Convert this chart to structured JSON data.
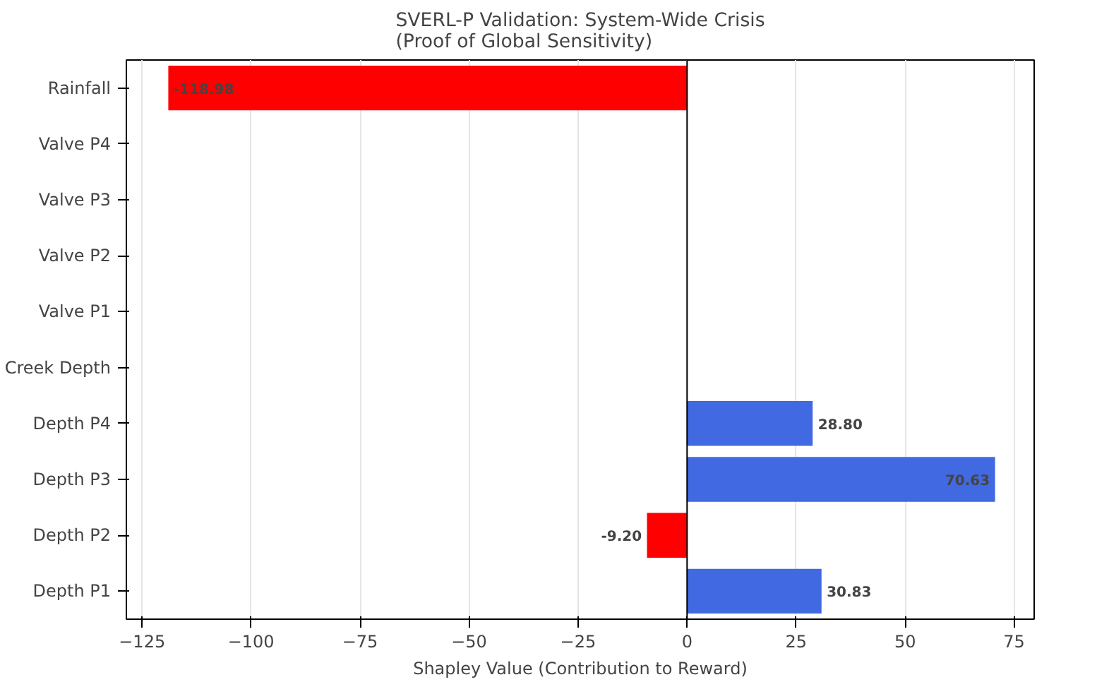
{
  "chart_data": {
    "type": "bar",
    "orientation": "horizontal",
    "title": "SVERL-P Validation: System-Wide Crisis",
    "subtitle": "(Proof of Global Sensitivity)",
    "xlabel": "Shapley Value (Contribution to Reward)",
    "categories": [
      "Rainfall",
      "Valve P4",
      "Valve P3",
      "Valve P2",
      "Valve P1",
      "Creek Depth",
      "Depth P4",
      "Depth P3",
      "Depth P2",
      "Depth P1"
    ],
    "values": [
      -118.98,
      null,
      null,
      null,
      null,
      null,
      28.8,
      70.63,
      -9.2,
      30.83
    ],
    "colors": [
      "#ff0000",
      null,
      null,
      null,
      null,
      null,
      "#4169e1",
      "#4169e1",
      "#ff0000",
      "#4169e1"
    ],
    "value_labels": [
      "-118.98",
      null,
      null,
      null,
      null,
      null,
      "28.80",
      "70.63",
      "-9.20",
      "30.83"
    ],
    "xlim": [
      -128.6,
      79.6
    ],
    "xticks": [
      {
        "value": -125,
        "label": "−125"
      },
      {
        "value": -100,
        "label": "−100"
      },
      {
        "value": -75,
        "label": "−75"
      },
      {
        "value": -50,
        "label": "−50"
      },
      {
        "value": -25,
        "label": "−25"
      },
      0,
      25,
      50,
      75
    ],
    "ref_lines": [
      {
        "axis": "x",
        "value": 0,
        "label": null,
        "color": "#000000"
      }
    ],
    "grid": "x"
  }
}
